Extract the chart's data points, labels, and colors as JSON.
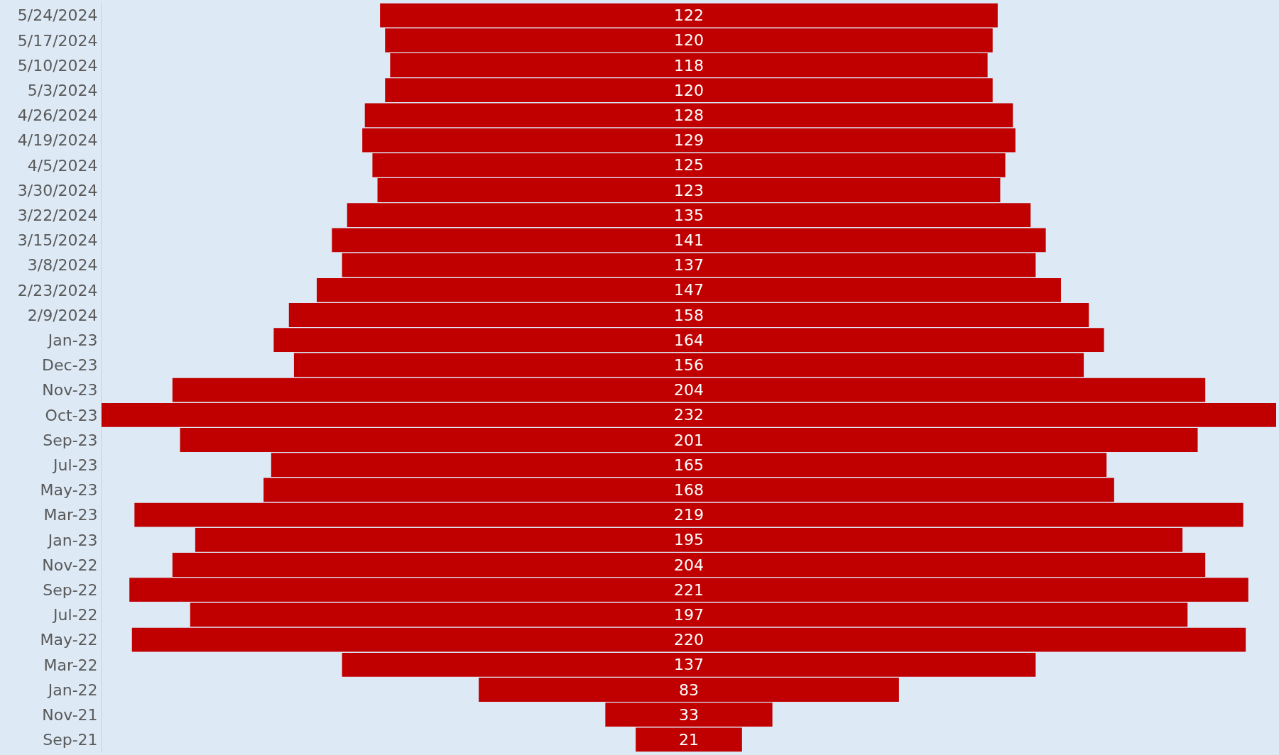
{
  "chart_data": {
    "type": "other",
    "categories": [
      "5/24/2024",
      "5/17/2024",
      "5/10/2024",
      "5/3/2024",
      "4/26/2024",
      "4/19/2024",
      "4/5/2024",
      "3/30/2024",
      "3/22/2024",
      "3/15/2024",
      "3/8/2024",
      "2/23/2024",
      "2/9/2024",
      "Jan-23",
      "Dec-23",
      "Nov-23",
      "Oct-23",
      "Sep-23",
      "Jul-23",
      "May-23",
      "Mar-23",
      "Jan-23",
      "Nov-22",
      "Sep-22",
      "Jul-22",
      "May-22",
      "Mar-22",
      "Jan-22",
      "Nov-21",
      "Sep-21"
    ],
    "values": [
      122,
      120,
      118,
      120,
      128,
      129,
      125,
      123,
      135,
      141,
      137,
      147,
      158,
      164,
      156,
      204,
      232,
      201,
      165,
      168,
      219,
      195,
      204,
      221,
      197,
      220,
      137,
      83,
      33,
      21
    ],
    "color": "#c00000",
    "data_labels": true
  }
}
